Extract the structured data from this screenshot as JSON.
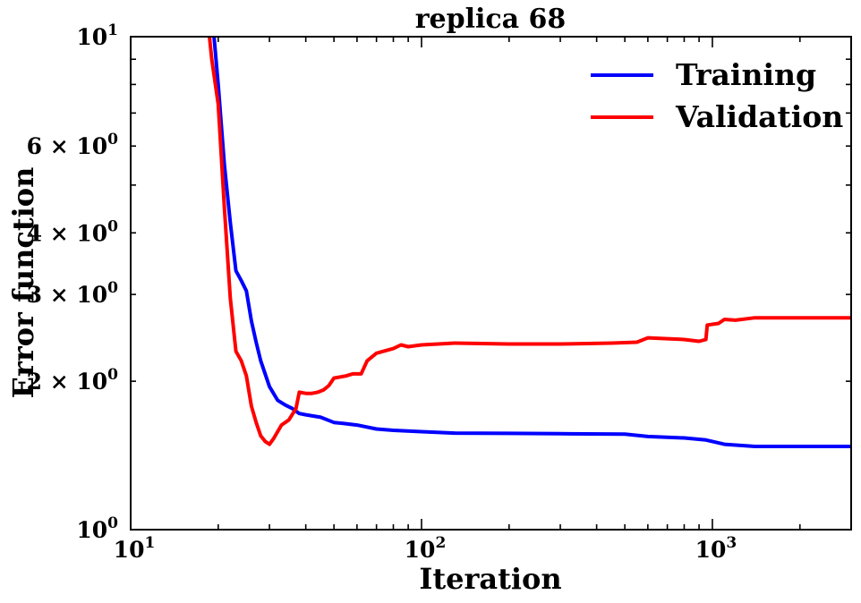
{
  "chart_data": {
    "type": "line",
    "title": "replica 68",
    "xlabel": "Iteration",
    "ylabel": "Error function",
    "xscale": "log",
    "yscale": "log",
    "xlim": [
      10,
      3000
    ],
    "ylim": [
      1,
      10
    ],
    "grid": false,
    "legend_position": "top-right",
    "x_major_ticks": [
      {
        "value": 10,
        "base": "10",
        "exp": "1"
      },
      {
        "value": 100,
        "base": "10",
        "exp": "2"
      },
      {
        "value": 1000,
        "base": "10",
        "exp": "3"
      }
    ],
    "y_major_ticks": [
      {
        "value": 1,
        "base": "10",
        "exp": "0"
      },
      {
        "value": 10,
        "base": "10",
        "exp": "1"
      }
    ],
    "y_minor_labels": [
      {
        "value": 2,
        "text": "2 × 10",
        "exp": "0"
      },
      {
        "value": 3,
        "text": "3 × 10",
        "exp": "0"
      },
      {
        "value": 4,
        "text": "4 × 10",
        "exp": "0"
      },
      {
        "value": 6,
        "text": "6 × 10",
        "exp": "0"
      }
    ],
    "series": [
      {
        "name": "Training",
        "color": "#0000ff",
        "points": [
          [
            19.2,
            10.5
          ],
          [
            20,
            8.0
          ],
          [
            21,
            5.5
          ],
          [
            22,
            4.2
          ],
          [
            23,
            3.35
          ],
          [
            24,
            3.2
          ],
          [
            25,
            3.05
          ],
          [
            26,
            2.65
          ],
          [
            27,
            2.4
          ],
          [
            28,
            2.2
          ],
          [
            30,
            1.95
          ],
          [
            32,
            1.83
          ],
          [
            34,
            1.79
          ],
          [
            36,
            1.76
          ],
          [
            38,
            1.72
          ],
          [
            40,
            1.71
          ],
          [
            45,
            1.69
          ],
          [
            50,
            1.65
          ],
          [
            55,
            1.64
          ],
          [
            60,
            1.63
          ],
          [
            70,
            1.6
          ],
          [
            80,
            1.59
          ],
          [
            100,
            1.58
          ],
          [
            130,
            1.57
          ],
          [
            200,
            1.568
          ],
          [
            300,
            1.565
          ],
          [
            500,
            1.562
          ],
          [
            600,
            1.545
          ],
          [
            800,
            1.535
          ],
          [
            950,
            1.52
          ],
          [
            1000,
            1.51
          ],
          [
            1100,
            1.49
          ],
          [
            1300,
            1.48
          ],
          [
            1400,
            1.475
          ],
          [
            3000,
            1.475
          ]
        ]
      },
      {
        "name": "Validation",
        "color": "#ff0000",
        "points": [
          [
            18.5,
            10.5
          ],
          [
            19,
            9.0
          ],
          [
            20,
            7.3
          ],
          [
            21,
            4.5
          ],
          [
            22,
            2.95
          ],
          [
            23,
            2.3
          ],
          [
            24,
            2.2
          ],
          [
            25,
            2.05
          ],
          [
            26,
            1.78
          ],
          [
            27,
            1.65
          ],
          [
            28,
            1.55
          ],
          [
            29,
            1.51
          ],
          [
            30,
            1.49
          ],
          [
            31,
            1.53
          ],
          [
            32,
            1.58
          ],
          [
            33,
            1.63
          ],
          [
            35,
            1.67
          ],
          [
            37,
            1.76
          ],
          [
            38,
            1.9
          ],
          [
            40,
            1.89
          ],
          [
            42,
            1.89
          ],
          [
            44,
            1.9
          ],
          [
            46,
            1.92
          ],
          [
            48,
            1.96
          ],
          [
            50,
            2.03
          ],
          [
            55,
            2.05
          ],
          [
            58,
            2.07
          ],
          [
            62,
            2.07
          ],
          [
            65,
            2.2
          ],
          [
            70,
            2.28
          ],
          [
            80,
            2.33
          ],
          [
            85,
            2.37
          ],
          [
            90,
            2.35
          ],
          [
            100,
            2.37
          ],
          [
            130,
            2.39
          ],
          [
            200,
            2.38
          ],
          [
            300,
            2.38
          ],
          [
            450,
            2.39
          ],
          [
            550,
            2.4
          ],
          [
            600,
            2.45
          ],
          [
            800,
            2.43
          ],
          [
            900,
            2.41
          ],
          [
            950,
            2.43
          ],
          [
            960,
            2.6
          ],
          [
            1050,
            2.62
          ],
          [
            1100,
            2.67
          ],
          [
            1200,
            2.66
          ],
          [
            1400,
            2.69
          ],
          [
            3000,
            2.69
          ]
        ]
      }
    ]
  }
}
